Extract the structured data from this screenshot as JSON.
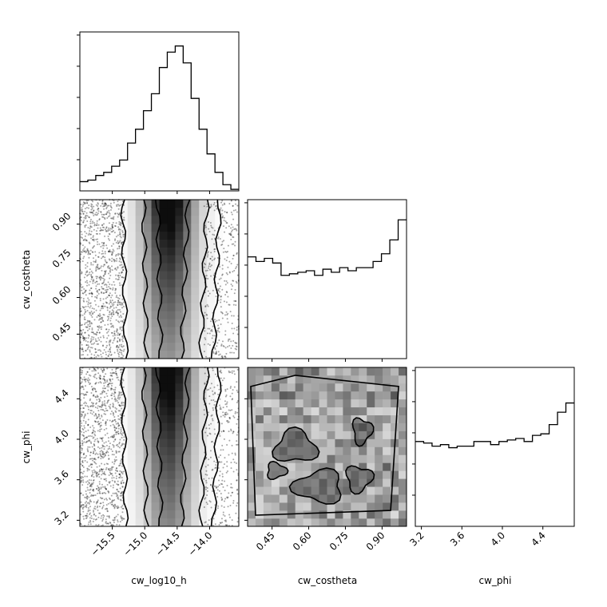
{
  "chart_data": {
    "type": "corner",
    "parameters": [
      "cw_log10_h",
      "cw_costheta",
      "cw_phi"
    ],
    "ranges": {
      "cw_log10_h": [
        -16.0,
        -13.55
      ],
      "cw_costheta": [
        0.35,
        1.0
      ],
      "cw_phi": [
        3.14,
        4.71
      ]
    },
    "ticks": {
      "cw_log10_h": [
        -15.5,
        -15.0,
        -14.5,
        -14.0
      ],
      "cw_costheta": [
        0.45,
        0.6,
        0.75,
        0.9
      ],
      "cw_phi": [
        3.2,
        3.6,
        4.0,
        4.4
      ]
    },
    "tick_labels": {
      "cw_log10_h": [
        "−15.5",
        "−15.0",
        "−14.5",
        "−14.0"
      ],
      "cw_costheta": [
        "0.45",
        "0.60",
        "0.75",
        "0.90"
      ],
      "cw_phi": [
        "3.2",
        "3.6",
        "4.0",
        "4.4"
      ]
    },
    "histograms": {
      "cw_log10_h": [
        0.06,
        0.07,
        0.1,
        0.12,
        0.16,
        0.2,
        0.31,
        0.4,
        0.52,
        0.63,
        0.8,
        0.9,
        0.94,
        0.83,
        0.6,
        0.4,
        0.24,
        0.12,
        0.04,
        0.01
      ],
      "cw_costheta": [
        0.66,
        0.63,
        0.65,
        0.62,
        0.54,
        0.55,
        0.56,
        0.57,
        0.54,
        0.58,
        0.56,
        0.59,
        0.57,
        0.59,
        0.59,
        0.63,
        0.68,
        0.77,
        0.9
      ],
      "cw_phi": [
        0.55,
        0.54,
        0.52,
        0.53,
        0.51,
        0.52,
        0.52,
        0.55,
        0.55,
        0.53,
        0.55,
        0.56,
        0.57,
        0.55,
        0.59,
        0.6,
        0.66,
        0.74,
        0.8
      ],
      "hist_ymax": [
        1.0,
        1.0,
        1.0
      ]
    },
    "contour_panels": [
      {
        "x": "cw_log10_h",
        "y": "cw_costheta"
      },
      {
        "x": "cw_log10_h",
        "y": "cw_phi"
      },
      {
        "x": "cw_costheta",
        "y": "cw_phi"
      }
    ],
    "xlabels": [
      "cw_log10_h",
      "cw_costheta",
      "cw_phi"
    ],
    "ylabels": [
      "",
      "cw_costheta",
      "cw_phi"
    ],
    "grid": false
  }
}
